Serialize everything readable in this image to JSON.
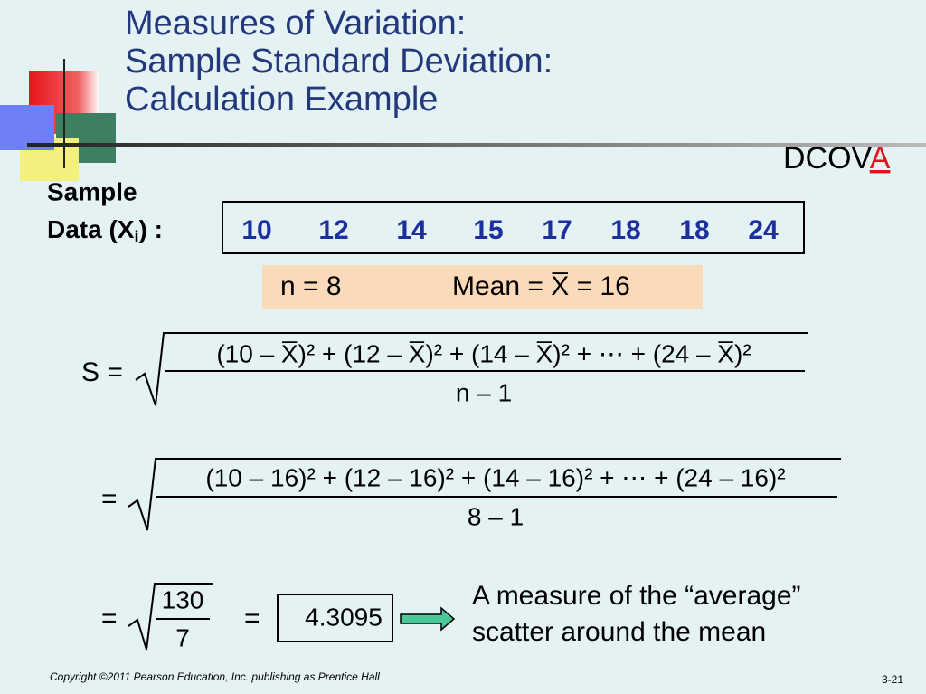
{
  "title": [
    "Measures of Variation:",
    "Sample Standard Deviation:",
    "Calculation Example"
  ],
  "badge": {
    "text": "DCOV",
    "highlight": "A"
  },
  "sample": {
    "label": "Sample",
    "label2": "Data  (X",
    "subscript": "i",
    "label_end": ") :",
    "values": [
      10,
      12,
      14,
      15,
      17,
      18,
      18,
      24
    ]
  },
  "summary": {
    "n": "n = 8",
    "mean": "Mean = X̅ = 16"
  },
  "formula1": {
    "lhs": "S =",
    "numerator": "(10 – X̅)² + (12 – X̅)² + (14 – X̅)² + ⋯ + (24 – X̅)²",
    "denominator": "n – 1"
  },
  "formula2": {
    "lhs": "=",
    "numerator": "(10 – 16)² + (12 – 16)² + (14 – 16)² + ⋯ + (24 – 16)²",
    "denominator": "8 – 1"
  },
  "formula3": {
    "lhs": "=",
    "numerator": "130",
    "denominator": "7",
    "equals": "=",
    "result": "4.3095"
  },
  "note": [
    "A measure of the “average”",
    "scatter around the mean"
  ],
  "footer": {
    "copyright": "Copyright ©2011 Pearson Education, Inc. publishing as Prentice Hall",
    "page": "3-21"
  }
}
